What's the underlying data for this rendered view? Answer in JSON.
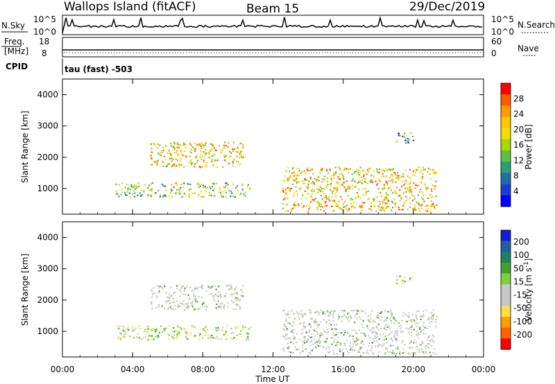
{
  "header": {
    "site": "Wallops Island (fitACF)",
    "beam": "Beam 15",
    "date": "29/Dec/2019"
  },
  "strips": {
    "nsky_label": "N.Sky",
    "nsky_ticks": [
      "10^5",
      "10^0"
    ],
    "nsky_right_ticks": [
      "10^5",
      "10^0"
    ],
    "nsearch_label": "N.Search",
    "freq_label_1": "Freq.",
    "freq_label_2": "[MHz]",
    "freq_ticks": [
      "18",
      "8"
    ],
    "nave_ticks": [
      "60",
      "0"
    ],
    "nave_label": "Nave",
    "cpid_label": "CPID",
    "cpid_value": "tau (fast) -503"
  },
  "panels": {
    "ylabel": "Slant Range [km]",
    "yticks": [
      "4000",
      "3000",
      "2000",
      "1000"
    ],
    "xlabel": "Time UT",
    "xticks": [
      "00:00",
      "04:00",
      "08:00",
      "12:00",
      "16:00",
      "20:00",
      "00:00"
    ]
  },
  "chart_data": [
    {
      "type": "heatmap",
      "name": "power",
      "x_range_hours": [
        0,
        24
      ],
      "y_range_km": [
        180,
        4500
      ],
      "colorbar": {
        "label": "Power [dB]",
        "ticks": [
          "28",
          "24",
          "20",
          "16",
          "12",
          "8",
          "4"
        ],
        "colors": [
          "#ff0000",
          "#ff5a00",
          "#ff9a00",
          "#ffc800",
          "#f0e000",
          "#a8d800",
          "#5fbf40",
          "#2e9e7a",
          "#1c6fa8",
          "#1a3fd0",
          "#0000ff"
        ],
        "range": [
          0,
          30
        ]
      },
      "regions": [
        {
          "t0": 5.0,
          "t1": 10.3,
          "r0": 1700,
          "r1": 2500,
          "level": "high"
        },
        {
          "t0": 3.0,
          "t1": 10.7,
          "r0": 750,
          "r1": 1200,
          "level": "mid"
        },
        {
          "t0": 12.5,
          "t1": 21.3,
          "r0": 300,
          "r1": 1700,
          "level": "high"
        },
        {
          "t0": 19.0,
          "t1": 20.0,
          "r0": 2450,
          "r1": 2800,
          "level": "low"
        }
      ]
    },
    {
      "type": "heatmap",
      "name": "velocity",
      "x_range_hours": [
        0,
        24
      ],
      "y_range_km": [
        180,
        4500
      ],
      "colorbar": {
        "label": "Velocity [m s^-1]",
        "ticks": [
          "200",
          "100",
          "50",
          "15",
          "-15",
          "-50",
          "-100",
          "-200"
        ],
        "colors": [
          "#1020d0",
          "#2060a0",
          "#208060",
          "#40a030",
          "#80d040",
          "#c8c8c8",
          "#c8c8c8",
          "#ffe040",
          "#ffa000",
          "#ff6000",
          "#ff0000"
        ],
        "range": [
          -250,
          250
        ]
      },
      "regions": [
        {
          "t0": 5.0,
          "t1": 10.3,
          "r0": 1700,
          "r1": 2500,
          "level": "low"
        },
        {
          "t0": 3.0,
          "t1": 10.7,
          "r0": 750,
          "r1": 1200,
          "level": "mixed"
        },
        {
          "t0": 12.5,
          "t1": 21.3,
          "r0": 300,
          "r1": 1700,
          "level": "low"
        },
        {
          "t0": 19.0,
          "t1": 20.0,
          "r0": 2450,
          "r1": 2800,
          "level": "mixed"
        }
      ]
    }
  ]
}
